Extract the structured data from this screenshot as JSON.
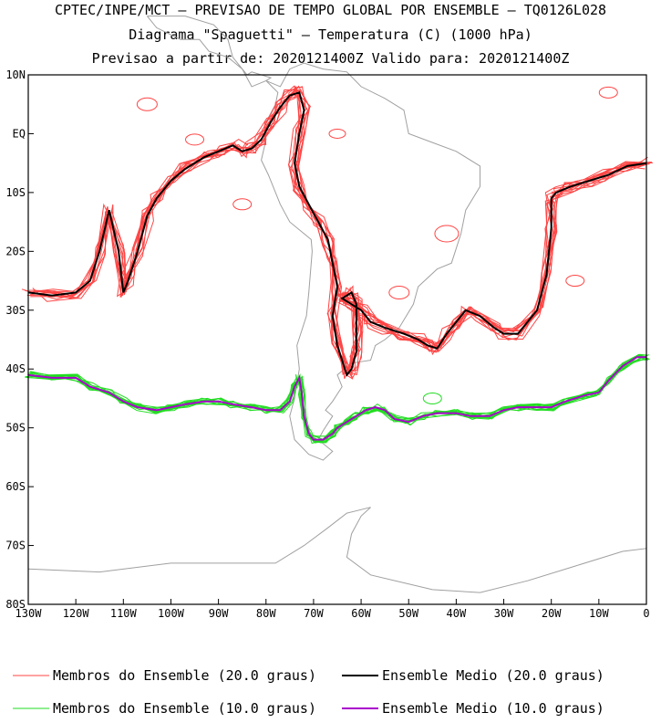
{
  "header": {
    "line1": "CPTEC/INPE/MCT – PREVISAO DE TEMPO GLOBAL POR ENSEMBLE – TQ0126L028",
    "line2": "Diagrama \"Spaguetti\" – Temperatura (C) (1000 hPa)",
    "line3": "Previsao a partir de: 2020121400Z  Valido para: 2020121400Z"
  },
  "chart_data": {
    "type": "line",
    "projection": "lat-lon map",
    "xlim": [
      -130,
      0
    ],
    "ylim": [
      -80,
      10
    ],
    "x_ticks": [
      {
        "value": -130,
        "label": "130W"
      },
      {
        "value": -120,
        "label": "120W"
      },
      {
        "value": -110,
        "label": "110W"
      },
      {
        "value": -100,
        "label": "100W"
      },
      {
        "value": -90,
        "label": "90W"
      },
      {
        "value": -80,
        "label": "80W"
      },
      {
        "value": -70,
        "label": "70W"
      },
      {
        "value": -60,
        "label": "60W"
      },
      {
        "value": -50,
        "label": "50W"
      },
      {
        "value": -40,
        "label": "40W"
      },
      {
        "value": -30,
        "label": "30W"
      },
      {
        "value": -20,
        "label": "20W"
      },
      {
        "value": -10,
        "label": "10W"
      },
      {
        "value": 0,
        "label": "0"
      }
    ],
    "y_ticks": [
      {
        "value": 10,
        "label": "10N"
      },
      {
        "value": 0,
        "label": "EQ"
      },
      {
        "value": -10,
        "label": "10S"
      },
      {
        "value": -20,
        "label": "20S"
      },
      {
        "value": -30,
        "label": "30S"
      },
      {
        "value": -40,
        "label": "40S"
      },
      {
        "value": -50,
        "label": "50S"
      },
      {
        "value": -60,
        "label": "60S"
      },
      {
        "value": -70,
        "label": "70S"
      },
      {
        "value": -80,
        "label": "80S"
      }
    ],
    "grid": false,
    "colors": {
      "member20": "#ff4444",
      "mean20": "#000000",
      "member10": "#22dd22",
      "mean10": "#aa00cc",
      "coast": "#a0a0a0"
    },
    "series": [
      {
        "name": "Ensemble Medio (20.0 graus)",
        "x": [
          -130,
          -125,
          -120,
          -117,
          -115,
          -113,
          -111,
          -110,
          -109,
          -107,
          -105,
          -103,
          -100,
          -97,
          -93,
          -90,
          -87,
          -85,
          -83,
          -81,
          -79,
          -77,
          -75,
          -73,
          -72,
          -73,
          -74,
          -73,
          -71,
          -69,
          -67,
          -66,
          -65,
          -66,
          -65,
          -63,
          -62,
          -61,
          -61,
          -61,
          -62,
          -63,
          -64,
          -62,
          -60,
          -58,
          -55,
          -51,
          -48,
          -46,
          -44,
          -42,
          -40,
          -38,
          -35,
          -32,
          -30,
          -27,
          -23,
          -21,
          -20,
          -20,
          -19,
          -16,
          -12,
          -8,
          -4,
          0
        ],
        "y": [
          -27,
          -27.5,
          -27,
          -25,
          -20,
          -13,
          -20,
          -27,
          -25,
          -20,
          -14,
          -11,
          -8,
          -6,
          -4,
          -3,
          -2,
          -3,
          -2.5,
          -1,
          2,
          4.5,
          6.5,
          7,
          4,
          0,
          -5,
          -9,
          -12,
          -15,
          -18,
          -22,
          -26,
          -31,
          -36,
          -41,
          -40,
          -37,
          -33,
          -29,
          -27,
          -27.5,
          -28,
          -29,
          -30,
          -32,
          -33,
          -34,
          -35,
          -36,
          -36.5,
          -34,
          -32,
          -30,
          -31,
          -33,
          -34,
          -34,
          -30,
          -24,
          -16,
          -11,
          -10,
          -9,
          -8,
          -7,
          -5.5,
          -5
        ]
      },
      {
        "name": "Ensemble Medio (10.0 graus)",
        "x": [
          -130,
          -125,
          -120,
          -117,
          -113,
          -110,
          -107,
          -103,
          -100,
          -97,
          -93,
          -90,
          -87,
          -83,
          -80,
          -77,
          -75,
          -74,
          -73,
          -72.5,
          -72,
          -71,
          -70,
          -68,
          -66,
          -65,
          -63,
          -61,
          -59,
          -57,
          -55,
          -53,
          -50,
          -47,
          -44,
          -40,
          -37,
          -33,
          -30,
          -27,
          -23,
          -20,
          -17,
          -13,
          -10,
          -8,
          -5,
          -2,
          0
        ],
        "y": [
          -41,
          -41.5,
          -41.5,
          -43,
          -44,
          -45.5,
          -46.5,
          -47,
          -46.5,
          -46,
          -45.5,
          -45.5,
          -46,
          -46.5,
          -47,
          -47,
          -45.5,
          -43,
          -41.5,
          -44,
          -48,
          -51,
          -52,
          -52,
          -51,
          -50,
          -49,
          -48,
          -47,
          -46.5,
          -47,
          -48.5,
          -49,
          -48,
          -47.5,
          -47.5,
          -48,
          -48,
          -47,
          -46.5,
          -46.5,
          -46.5,
          -45.5,
          -44.5,
          -44,
          -42,
          -39.5,
          -38,
          -38
        ]
      }
    ],
    "legend_position": "bottom",
    "legend": [
      {
        "label": "Membros do Ensemble (20.0 graus)"
      },
      {
        "label": "Ensemble Medio (20.0 graus)"
      },
      {
        "label": "Membros do Ensemble (10.0 graus)"
      },
      {
        "label": "Ensemble Medio (10.0 graus)"
      }
    ]
  }
}
